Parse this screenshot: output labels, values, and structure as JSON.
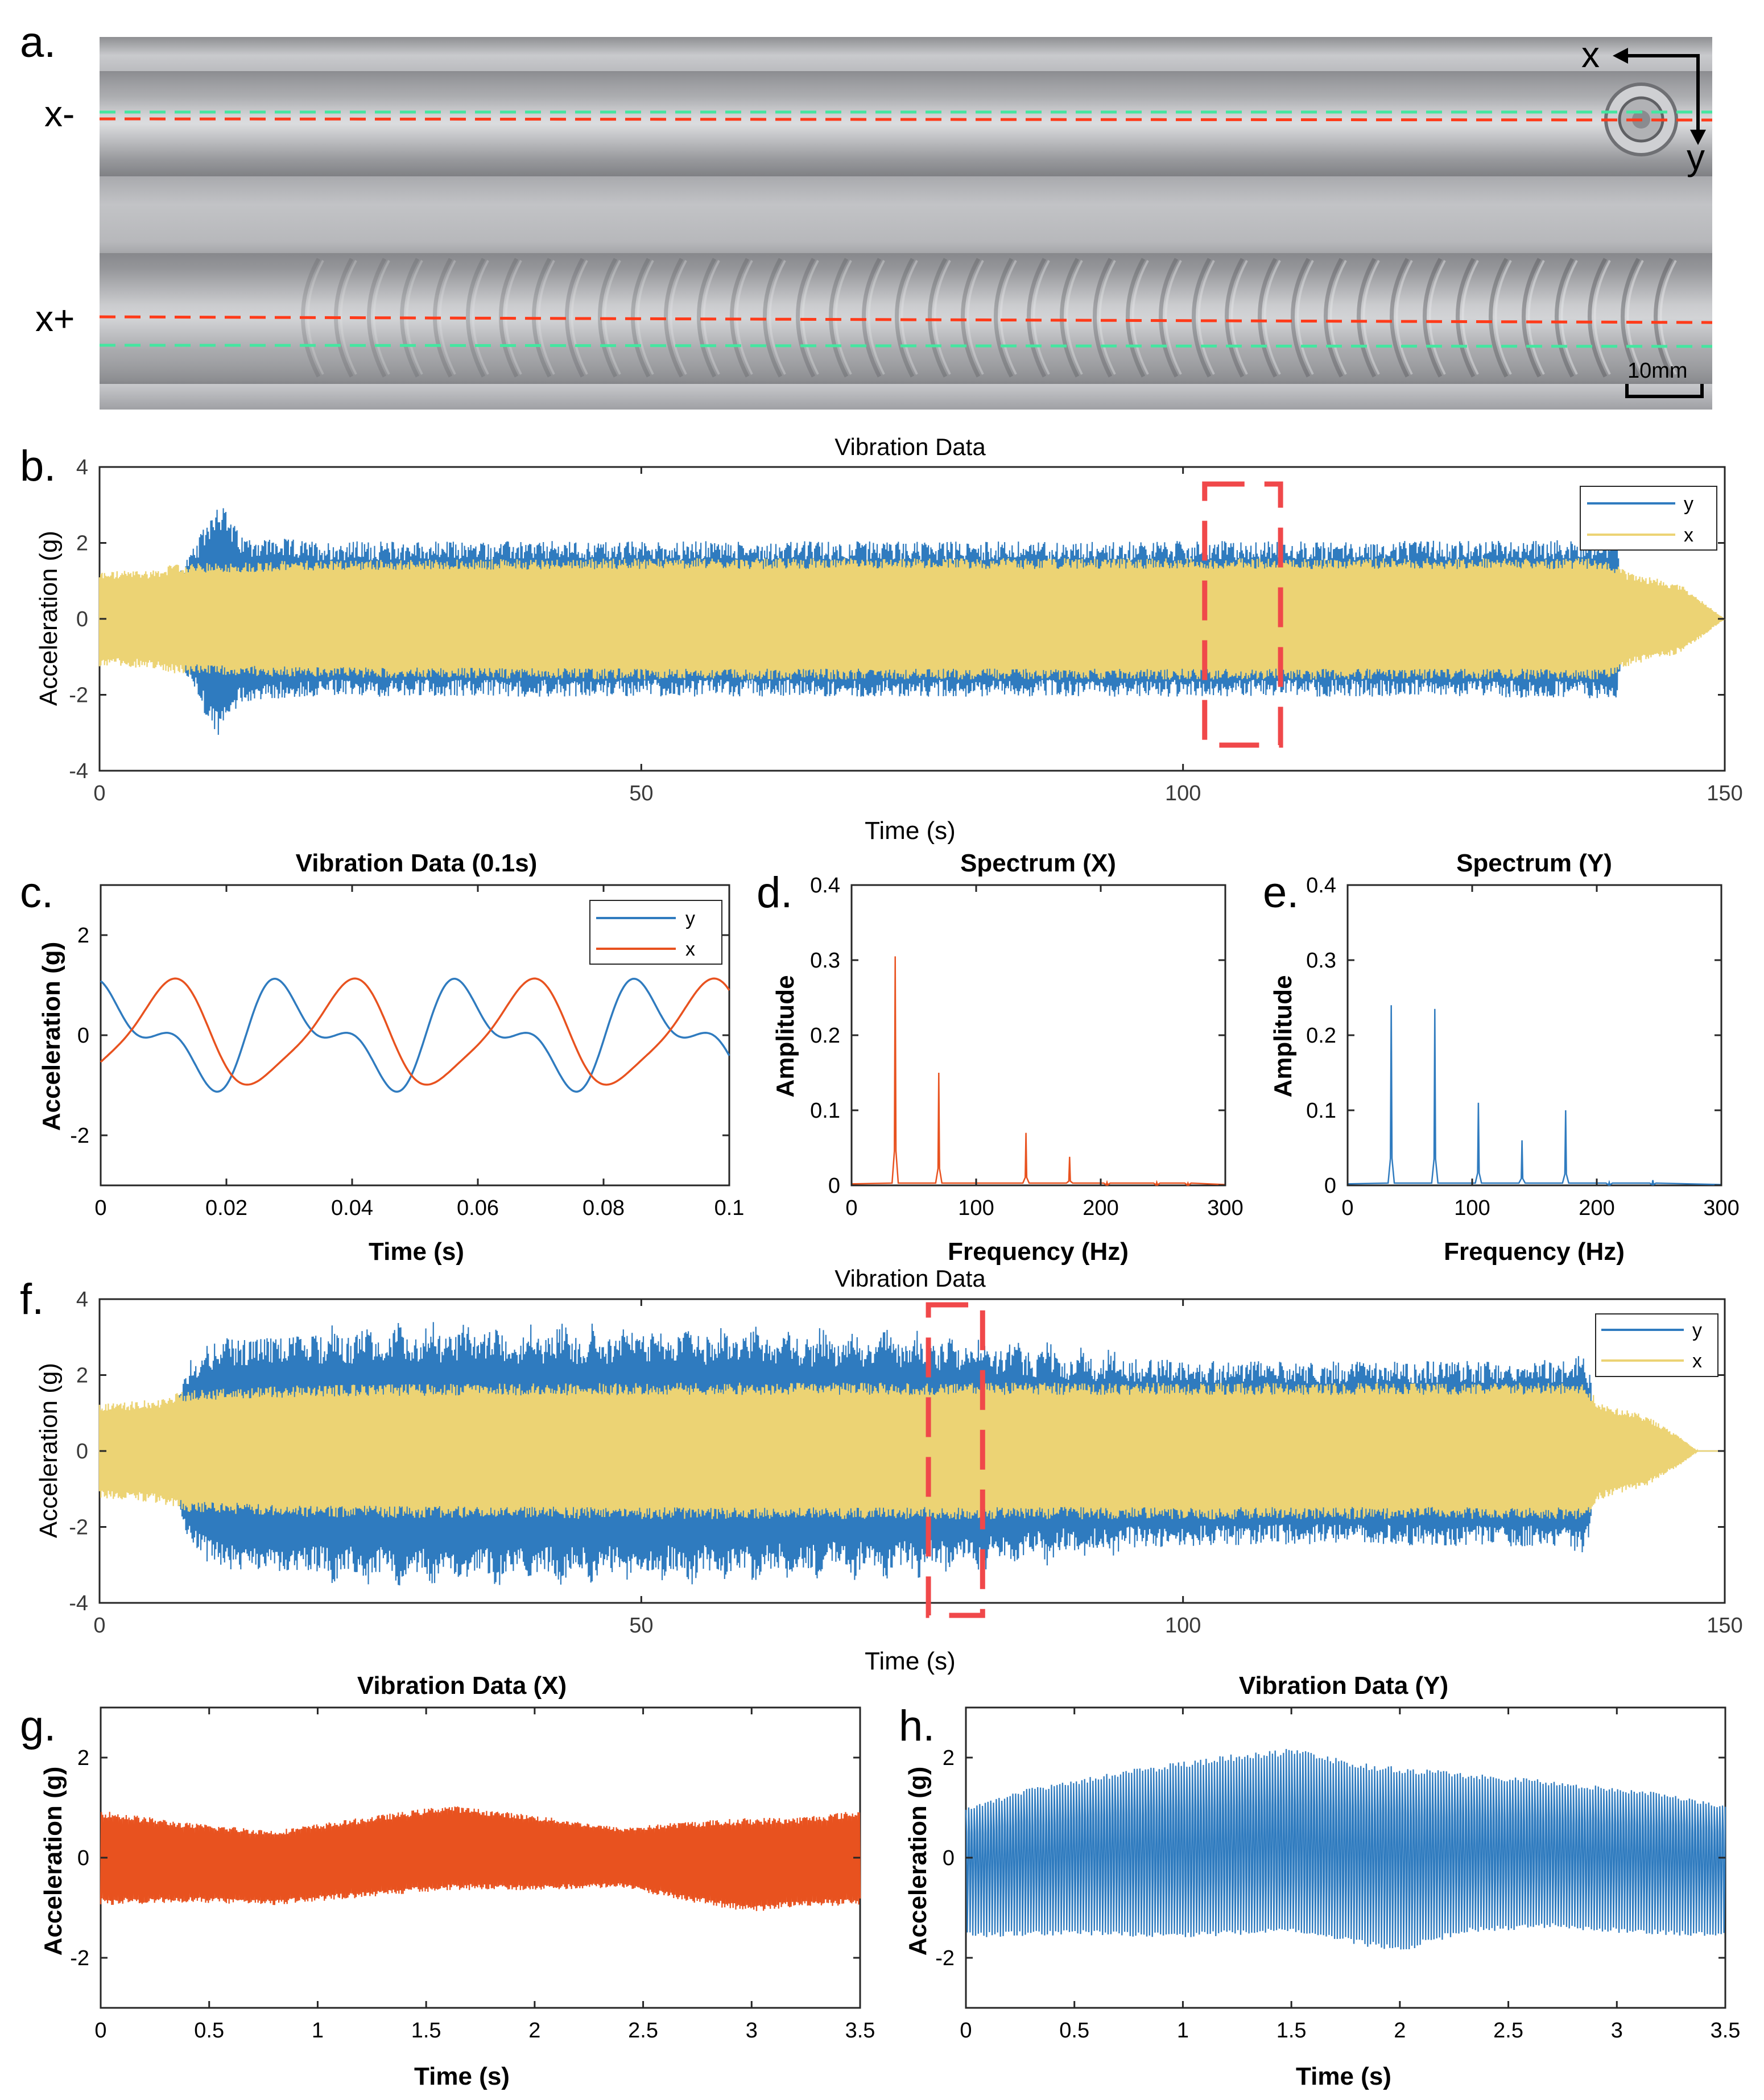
{
  "colors": {
    "y_series": "#2f7bbf",
    "x_series_yellow": "#ecd374",
    "x_series_orange": "#e8521f",
    "highlight": "#f0484a",
    "guide_red": "#ff3b1a",
    "guide_green": "#44e6a0"
  },
  "panel_labels": {
    "a": "a.",
    "b": "b.",
    "c": "c.",
    "d": "d.",
    "e": "e.",
    "f": "f.",
    "g": "g.",
    "h": "h."
  },
  "photo": {
    "label_xminus": "x-",
    "label_xplus": "x+",
    "axis_x": "x",
    "axis_y": "y",
    "scale_bar": "10mm"
  },
  "chart_data": [
    {
      "id": "b",
      "type": "line",
      "title": "Vibration Data",
      "xlabel": "Time (s)",
      "ylabel": "Acceleration (g)",
      "xlim": [
        0,
        150
      ],
      "ylim": [
        -4,
        4
      ],
      "xticks": [
        0,
        50,
        100,
        150
      ],
      "yticks": [
        -4,
        -2,
        0,
        2,
        4
      ],
      "legend": [
        "y",
        "x"
      ],
      "legend_position": "top-right",
      "highlight_window_s": [
        102,
        109
      ],
      "envelope": {
        "y": {
          "t": [
            0,
            6.5,
            7,
            8,
            9,
            10,
            11,
            13,
            20,
            50,
            100,
            120,
            139,
            140,
            140.5,
            141,
            150
          ],
          "amp": [
            0,
            0,
            1.1,
            1.6,
            2.0,
            2.7,
            3.2,
            2.2,
            2.05,
            2.05,
            2.05,
            2.05,
            2.1,
            2.3,
            0.9,
            0,
            0
          ]
        },
        "x": {
          "t": [
            0,
            5,
            7,
            20,
            50,
            100,
            130,
            139,
            141,
            146,
            148,
            150
          ],
          "amp": [
            1.25,
            1.3,
            1.45,
            1.55,
            1.6,
            1.6,
            1.6,
            1.6,
            1.25,
            0.9,
            0.45,
            0
          ]
        }
      }
    },
    {
      "id": "c",
      "type": "line",
      "title": "Vibration Data (0.1s)",
      "xlabel": "Time (s)",
      "ylabel": "Acceleration (g)",
      "xlim": [
        0,
        0.1
      ],
      "ylim": [
        -3,
        3
      ],
      "xticks": [
        0,
        0.02,
        0.04,
        0.06,
        0.08,
        0.1
      ],
      "yticks": [
        -2,
        0,
        2
      ],
      "legend": [
        "y",
        "x"
      ],
      "legend_position": "top-right",
      "fundamental_hz": 35,
      "series": [
        {
          "name": "y",
          "amplitudes": [
            0.8,
            0.5
          ],
          "phases": [
            1.2,
            2.4
          ]
        },
        {
          "name": "x",
          "amplitudes": [
            1.0,
            0.2
          ],
          "phases": [
            -0.8,
            2.0
          ]
        }
      ]
    },
    {
      "id": "d",
      "type": "line",
      "title": "Spectrum (X)",
      "xlabel": "Frequency (Hz)",
      "ylabel": "Amplitude",
      "xlim": [
        0,
        300
      ],
      "ylim": [
        0,
        0.4
      ],
      "xticks": [
        0,
        100,
        200,
        300
      ],
      "yticks": [
        0,
        0.1,
        0.2,
        0.3,
        0.4
      ],
      "peaks": [
        [
          35,
          0.305
        ],
        [
          70,
          0.15
        ],
        [
          140,
          0.07
        ],
        [
          175,
          0.038
        ],
        [
          205,
          0.004
        ],
        [
          245,
          0.004
        ],
        [
          270,
          0.003
        ]
      ]
    },
    {
      "id": "e",
      "type": "line",
      "title": "Spectrum (Y)",
      "xlabel": "Frequency (Hz)",
      "ylabel": "Amplitude",
      "xlim": [
        0,
        300
      ],
      "ylim": [
        0,
        0.4
      ],
      "xticks": [
        0,
        100,
        200,
        300
      ],
      "yticks": [
        0,
        0.1,
        0.2,
        0.3,
        0.4
      ],
      "peaks": [
        [
          35,
          0.24
        ],
        [
          70,
          0.235
        ],
        [
          105,
          0.11
        ],
        [
          140,
          0.06
        ],
        [
          175,
          0.1
        ],
        [
          210,
          0.004
        ],
        [
          245,
          0.007
        ]
      ]
    },
    {
      "id": "f",
      "type": "line",
      "title": "Vibration Data",
      "xlabel": "Time (s)",
      "ylabel": "Acceleration (g)",
      "xlim": [
        0,
        150
      ],
      "ylim": [
        -4,
        4
      ],
      "xticks": [
        0,
        50,
        100,
        150
      ],
      "yticks": [
        -4,
        -2,
        0,
        2,
        4
      ],
      "legend": [
        "y",
        "x"
      ],
      "legend_position": "top-right",
      "highlight_window_s": [
        76.5,
        81.5
      ],
      "envelope": {
        "y": {
          "t": [
            0,
            6.5,
            7,
            8,
            10,
            12,
            30,
            60,
            80,
            90,
            110,
            135,
            137,
            137.6,
            138.5,
            150
          ],
          "amp": [
            0,
            0,
            1.2,
            2.3,
            2.8,
            3.0,
            3.1,
            3.0,
            2.8,
            2.45,
            2.35,
            2.4,
            2.6,
            2.0,
            0,
            0
          ]
        },
        "x": {
          "t": [
            0,
            5,
            8,
            20,
            50,
            100,
            130,
            137,
            138.5,
            143,
            146,
            147.5,
            150
          ],
          "amp": [
            1.25,
            1.35,
            1.6,
            1.75,
            1.8,
            1.8,
            1.8,
            1.8,
            1.3,
            0.9,
            0.35,
            0,
            0
          ]
        }
      }
    },
    {
      "id": "g",
      "type": "line",
      "title": "Vibration Data (X)",
      "xlabel": "Time (s)",
      "ylabel": "Acceleration (g)",
      "xlim": [
        0,
        3.5
      ],
      "ylim": [
        -3,
        3
      ],
      "xticks": [
        0,
        0.5,
        1,
        1.5,
        2,
        2.5,
        3,
        3.5
      ],
      "yticks": [
        -2,
        0,
        2
      ],
      "envelope": {
        "t": [
          0,
          0.4,
          0.8,
          1.2,
          1.6,
          2.0,
          2.4,
          2.7,
          3.0,
          3.2,
          3.5
        ],
        "amp": [
          0.95,
          0.8,
          0.75,
          0.8,
          0.85,
          0.75,
          0.6,
          0.8,
          0.95,
          0.9,
          0.95
        ]
      },
      "offset": {
        "t": [
          0,
          0.8,
          1.6,
          2.4,
          3.0,
          3.5
        ],
        "value": [
          0,
          -0.2,
          0.2,
          0,
          -0.15,
          0
        ]
      }
    },
    {
      "id": "h",
      "type": "line",
      "title": "Vibration Data (Y)",
      "xlabel": "Time (s)",
      "ylabel": "Acceleration (g)",
      "xlim": [
        0,
        3.5
      ],
      "ylim": [
        -3,
        3
      ],
      "xticks": [
        0,
        0.5,
        1,
        1.5,
        2,
        2.5,
        3,
        3.5
      ],
      "yticks": [
        -2,
        0,
        2
      ],
      "upper": {
        "t": [
          0,
          0.3,
          0.8,
          1.2,
          1.5,
          1.8,
          2.3,
          2.8,
          3.2,
          3.5
        ],
        "value": [
          1.0,
          1.4,
          1.8,
          2.05,
          2.2,
          1.9,
          1.7,
          1.5,
          1.3,
          1.05
        ]
      },
      "lower": {
        "t": [
          0,
          0.5,
          1.0,
          1.5,
          2.0,
          2.3,
          2.7,
          3.0,
          3.5
        ],
        "value": [
          -1.6,
          -1.55,
          -1.6,
          -1.5,
          -1.9,
          -1.5,
          -1.4,
          -1.5,
          -1.6
        ]
      }
    }
  ]
}
